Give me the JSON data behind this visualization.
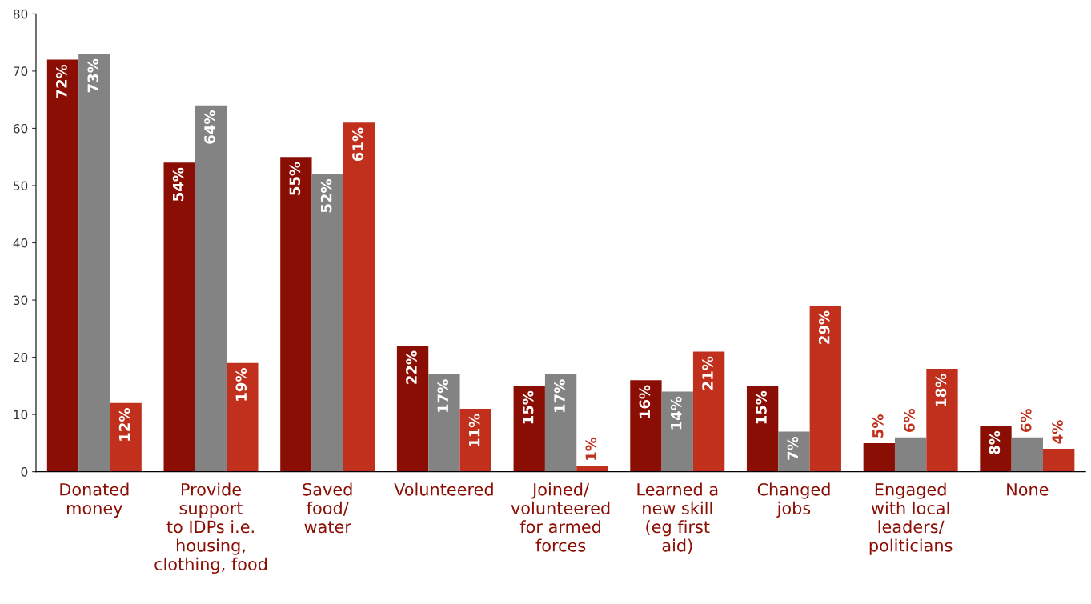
{
  "chart_data": {
    "type": "bar",
    "categories": [
      "Donated\nmoney",
      "Provide\nsupport\nto IDPs i.e.\nhousing,\nclothing, food",
      "Saved\nfood/\nwater",
      "Volunteered",
      "Joined/\nvolunteered\nfor armed\nforces",
      "Learned a\nnew skill\n(eg first\naid)",
      "Changed\njobs",
      "Engaged\nwith local\nleaders/\npoliticians",
      "None"
    ],
    "series": [
      {
        "color": "#8b0e04",
        "values": [
          72,
          54,
          55,
          22,
          15,
          16,
          15,
          5,
          8
        ],
        "value_labels": [
          "72%",
          "54%",
          "55%",
          "22%",
          "15%",
          "16%",
          "15%",
          "5%",
          "8%"
        ]
      },
      {
        "color": "#838383",
        "values": [
          73,
          64,
          52,
          17,
          17,
          14,
          7,
          6,
          6
        ],
        "value_labels": [
          "73%",
          "64%",
          "52%",
          "17%",
          "17%",
          "14%",
          "7%",
          "6%",
          "6%"
        ]
      },
      {
        "color": "#c0301c",
        "values": [
          12,
          19,
          61,
          11,
          1,
          21,
          29,
          18,
          4
        ],
        "value_labels": [
          "12%",
          "19%",
          "61%",
          "11%",
          "1%",
          "21%",
          "29%",
          "18%",
          "4%"
        ]
      }
    ],
    "ylim": [
      0,
      80
    ],
    "yticks": [
      0,
      10,
      20,
      30,
      40,
      50,
      60,
      70,
      80
    ],
    "grid": false,
    "legend": false
  }
}
